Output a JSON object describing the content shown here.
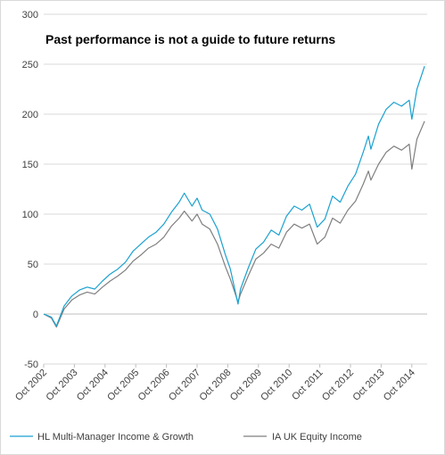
{
  "chart_data": {
    "type": "line",
    "title": "Past performance is not a guide to future returns",
    "xlabel": "",
    "ylabel": "",
    "ylim": [
      -50,
      300
    ],
    "yticks": [
      -50,
      0,
      50,
      100,
      150,
      200,
      250,
      300
    ],
    "xlim": [
      "2002-10",
      "2015-04"
    ],
    "xticks": [
      "Oct 2002",
      "Oct 2003",
      "Oct 2004",
      "Oct 2005",
      "Oct 2006",
      "Oct 2007",
      "Oct 2008",
      "Oct 2009",
      "Oct 2010",
      "Oct 2011",
      "Oct 2012",
      "Oct 2013",
      "Oct 2014"
    ],
    "grid": true,
    "legend": "bottom",
    "series": [
      {
        "name": "HL Multi-Manager Income & Growth",
        "color": "#1ba1d0",
        "x": [
          "2002-10",
          "2003-01",
          "2003-03",
          "2003-06",
          "2003-09",
          "2003-12",
          "2004-03",
          "2004-06",
          "2004-09",
          "2004-12",
          "2005-03",
          "2005-06",
          "2005-09",
          "2005-12",
          "2006-03",
          "2006-06",
          "2006-09",
          "2006-12",
          "2007-03",
          "2007-05",
          "2007-08",
          "2007-10",
          "2007-12",
          "2008-03",
          "2008-06",
          "2008-09",
          "2008-11",
          "2009-02",
          "2009-03",
          "2009-06",
          "2009-09",
          "2009-12",
          "2010-03",
          "2010-06",
          "2010-09",
          "2010-12",
          "2011-03",
          "2011-06",
          "2011-09",
          "2011-12",
          "2012-03",
          "2012-06",
          "2012-09",
          "2012-12",
          "2013-03",
          "2013-05",
          "2013-06",
          "2013-09",
          "2013-12",
          "2014-03",
          "2014-06",
          "2014-09",
          "2014-10",
          "2014-12",
          "2015-03"
        ],
        "values": [
          0,
          -3,
          -12,
          8,
          18,
          24,
          27,
          25,
          33,
          40,
          45,
          52,
          63,
          70,
          77,
          82,
          90,
          102,
          112,
          121,
          108,
          116,
          104,
          100,
          85,
          60,
          45,
          10,
          25,
          46,
          65,
          72,
          84,
          79,
          98,
          108,
          104,
          110,
          87,
          95,
          118,
          112,
          128,
          140,
          162,
          178,
          165,
          190,
          205,
          212,
          208,
          214,
          195,
          225,
          248
        ]
      },
      {
        "name": "IA UK Equity Income",
        "color": "#7f7f7f",
        "x": [
          "2002-10",
          "2003-01",
          "2003-03",
          "2003-06",
          "2003-09",
          "2003-12",
          "2004-03",
          "2004-06",
          "2004-09",
          "2004-12",
          "2005-03",
          "2005-06",
          "2005-09",
          "2005-12",
          "2006-03",
          "2006-06",
          "2006-09",
          "2006-12",
          "2007-03",
          "2007-05",
          "2007-08",
          "2007-10",
          "2007-12",
          "2008-03",
          "2008-06",
          "2008-09",
          "2008-11",
          "2009-02",
          "2009-03",
          "2009-06",
          "2009-09",
          "2009-12",
          "2010-03",
          "2010-06",
          "2010-09",
          "2010-12",
          "2011-03",
          "2011-06",
          "2011-09",
          "2011-12",
          "2012-03",
          "2012-06",
          "2012-09",
          "2012-12",
          "2013-03",
          "2013-05",
          "2013-06",
          "2013-09",
          "2013-12",
          "2014-03",
          "2014-06",
          "2014-09",
          "2014-10",
          "2014-12",
          "2015-03"
        ],
        "values": [
          0,
          -4,
          -13,
          5,
          14,
          19,
          22,
          20,
          27,
          33,
          38,
          44,
          53,
          59,
          66,
          70,
          77,
          88,
          96,
          103,
          93,
          100,
          90,
          85,
          70,
          48,
          35,
          12,
          20,
          38,
          55,
          61,
          70,
          66,
          82,
          90,
          86,
          90,
          70,
          77,
          96,
          91,
          104,
          113,
          130,
          143,
          134,
          150,
          162,
          168,
          164,
          170,
          145,
          175,
          193
        ]
      }
    ]
  }
}
